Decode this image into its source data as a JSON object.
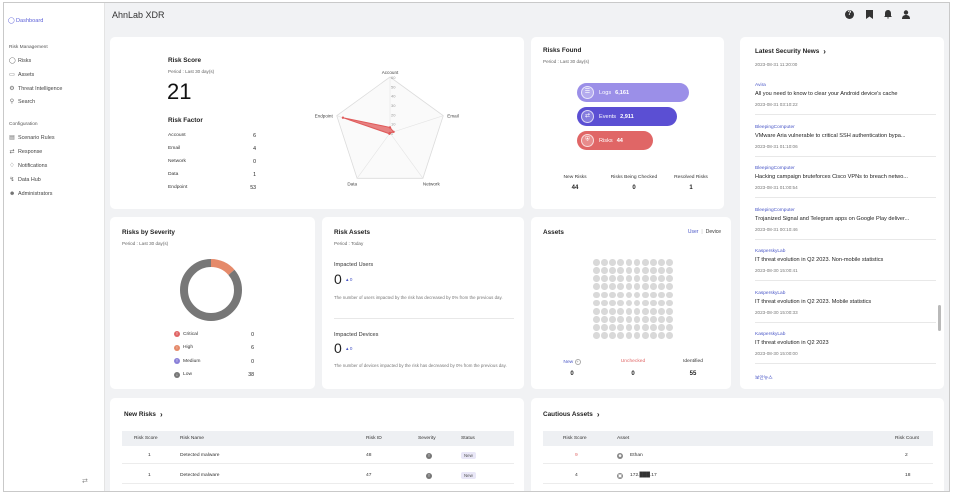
{
  "app_title": "AhnLab XDR",
  "sidebar": {
    "dashboard": "Dashboard",
    "section_risk": "Risk Management",
    "risk_items": [
      "Risks",
      "Assets",
      "Threat Intelligence",
      "Search"
    ],
    "section_config": "Configuration",
    "config_items": [
      "Scenario Rules",
      "Response",
      "Notifications",
      "Data Hub",
      "Administrators"
    ],
    "collapse_icon": "⇄"
  },
  "topbar": {
    "icons": [
      "help-icon",
      "bookmark-icon",
      "bell-icon",
      "user-icon"
    ]
  },
  "risk_score": {
    "title": "Risk Score",
    "period": "Period : Last 30 day(s)",
    "score": "21",
    "factor_title": "Risk Factor",
    "factors": [
      {
        "label": "Account",
        "value": "6"
      },
      {
        "label": "Email",
        "value": "4"
      },
      {
        "label": "Network",
        "value": "0"
      },
      {
        "label": "Data",
        "value": "1"
      },
      {
        "label": "Endpoint",
        "value": "53"
      }
    ],
    "radar": {
      "axes": [
        "Account",
        "Email",
        "Network",
        "Data",
        "Endpoint"
      ],
      "values": [
        6,
        4,
        0,
        1,
        53
      ],
      "max": 60,
      "ticks": [
        "60",
        "50",
        "40",
        "30",
        "20",
        "10",
        "0"
      ],
      "color": "#e05a5a"
    }
  },
  "risks_found": {
    "title": "Risks Found",
    "period": "Period : Last 30 day(s)",
    "pills": [
      {
        "label": "Logs",
        "value": "6,161",
        "color": "#9b8fe8",
        "icon": "☰"
      },
      {
        "label": "Events",
        "value": "2,911",
        "color": "#5b4fd3",
        "icon": "⇄"
      },
      {
        "label": "Risks",
        "value": "44",
        "color": "#e06666",
        "icon": "⛨"
      }
    ],
    "stats": [
      {
        "label": "New Risks",
        "value": "44"
      },
      {
        "label": "Risks Being Checked",
        "value": "0"
      },
      {
        "label": "Resolved Risks",
        "value": "1"
      }
    ]
  },
  "news": {
    "title": "Latest Security News",
    "chevron": "›",
    "updated": "2023-08-31 11:20:00",
    "items": [
      {
        "source": "Avira",
        "headline": "All you need to know to clear your Android device's cache",
        "time": "2023-08-31 03:10:22"
      },
      {
        "source": "BleepingComputer",
        "headline": "VMware Aria vulnerable to critical SSH authentication bypa...",
        "time": "2023-08-31 01:10:06"
      },
      {
        "source": "BleepingComputer",
        "headline": "Hacking campaign bruteforces Cisco VPNs to breach netwo...",
        "time": "2023-08-31 01:00:54"
      },
      {
        "source": "BleepingComputer",
        "headline": "Trojanized Signal and Telegram apps on Google Play deliver...",
        "time": "2023-08-31 00:10:46"
      },
      {
        "source": "KasperskyLab",
        "headline": "IT threat evolution in Q2 2023. Non-mobile statistics",
        "time": "2023-08-30 15:00:41"
      },
      {
        "source": "KasperskyLab",
        "headline": "IT threat evolution in Q2 2023. Mobile statistics",
        "time": "2023-08-30 15:00:33"
      },
      {
        "source": "KasperskyLab",
        "headline": "IT threat evolution in Q2 2023",
        "time": "2023-08-30 15:00:00"
      }
    ],
    "trailing_source": "보안뉴스"
  },
  "severity": {
    "title": "Risks by Severity",
    "period": "Period : Last 30 day(s)",
    "levels": [
      {
        "label": "Critical",
        "value": "0",
        "color": "#e06666"
      },
      {
        "label": "High",
        "value": "6",
        "color": "#e58a6a"
      },
      {
        "label": "Medium",
        "value": "0",
        "color": "#8a80d8"
      },
      {
        "label": "Low",
        "value": "38",
        "color": "#777777"
      }
    ]
  },
  "risk_assets": {
    "title": "Risk Assets",
    "period": "Period : Today",
    "users_label": "Impacted Users",
    "users_value": "0",
    "users_delta": "▴ 0",
    "users_desc": "The number of users impacted by the risk has decreased by 0% from the previous day.",
    "devices_label": "Impacted Devices",
    "devices_value": "0",
    "devices_delta": "▴ 0",
    "devices_desc": "The number of devices impacted by the risk has decreased by 0% from the previous day."
  },
  "assets": {
    "title": "Assets",
    "toggle_user": "User",
    "toggle_sep": "|",
    "toggle_device": "Device",
    "stats": [
      {
        "label": "New",
        "value": "0"
      },
      {
        "label": "Unchecked",
        "value": "0"
      },
      {
        "label": "Identified",
        "value": "55"
      }
    ]
  },
  "new_risks": {
    "title": "New Risks",
    "chevron": "›",
    "headers": [
      "Risk Score",
      "Risk Name",
      "Risk ID",
      "Severity",
      "Status"
    ],
    "rows": [
      {
        "score": "1",
        "name": "Detected malware",
        "id": "48",
        "severity": "!",
        "status": "New"
      },
      {
        "score": "1",
        "name": "Detected malware",
        "id": "47",
        "severity": "!",
        "status": "New"
      }
    ]
  },
  "cautious_assets": {
    "title": "Cautious Assets",
    "chevron": "›",
    "headers": [
      "Risk Score",
      "Asset",
      "Risk Count"
    ],
    "rows": [
      {
        "score": "9",
        "asset": "Ethan",
        "count": "2",
        "score_color": "#e06666"
      },
      {
        "score": "4",
        "asset": "172.███.17",
        "count": "18",
        "score_color": "#333333"
      }
    ]
  }
}
